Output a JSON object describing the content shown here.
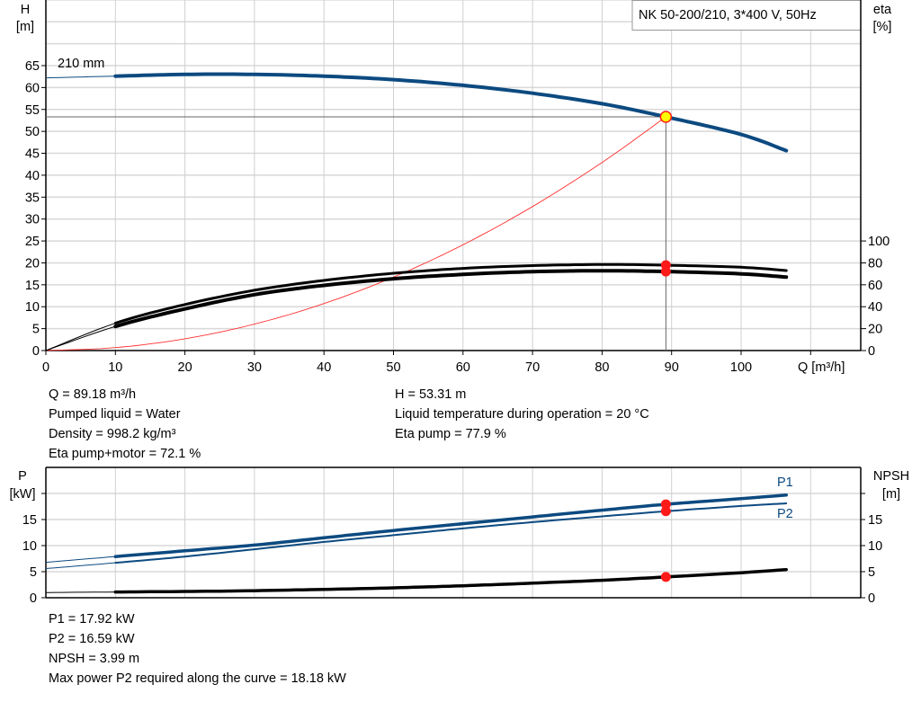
{
  "chart_data": [
    {
      "type": "line",
      "title": "NK 50-200/210, 3*400 V, 50Hz",
      "xlabel": "Q [m³/h]",
      "ylabel_left": [
        "H",
        "[m]"
      ],
      "ylabel_right": [
        "eta",
        "[%]"
      ],
      "xlim": [
        0,
        115
      ],
      "ylim_left": [
        0,
        80
      ],
      "ylim_right": [
        0,
        100
      ],
      "x_ticks": [
        0,
        10,
        20,
        30,
        40,
        50,
        60,
        70,
        80,
        90,
        100
      ],
      "y_ticks_left": [
        0,
        5,
        10,
        15,
        20,
        25,
        30,
        35,
        40,
        45,
        50,
        55,
        60,
        65
      ],
      "y_ticks_right": [
        0,
        20,
        40,
        60,
        80,
        100
      ],
      "grid": true,
      "curve_label": "210 mm",
      "series": [
        {
          "axis": "left",
          "color": "#0c4a80",
          "x": [
            0,
            10,
            20,
            30,
            40,
            50,
            60,
            70,
            80,
            89.18,
            100,
            106.5
          ],
          "y": [
            62.2,
            62.6,
            63.0,
            63.0,
            62.6,
            61.8,
            60.5,
            58.7,
            56.3,
            53.31,
            49.3,
            45.6
          ]
        },
        {
          "axis": "right",
          "color": "#000000",
          "x": [
            0,
            10,
            20,
            30,
            40,
            50,
            60,
            70,
            80,
            89.18,
            100,
            106.5
          ],
          "y": [
            0,
            25,
            42,
            55,
            64,
            70.5,
            75,
            77.5,
            78.5,
            77.9,
            76,
            73
          ]
        },
        {
          "axis": "right",
          "color": "#000000",
          "x": [
            0,
            10,
            20,
            30,
            40,
            50,
            60,
            70,
            80,
            89.18,
            100,
            106.5
          ],
          "y": [
            0,
            22,
            38,
            51,
            59.5,
            65.5,
            69.5,
            72,
            72.8,
            72.1,
            70,
            67
          ]
        },
        {
          "axis": "left",
          "color": "#ff3030",
          "x": [
            0,
            10,
            20,
            30,
            40,
            50,
            60,
            70,
            80,
            89.18
          ],
          "y": [
            0,
            0.67,
            2.68,
            6.03,
            10.72,
            16.76,
            24.13,
            32.85,
            42.9,
            53.31
          ]
        }
      ],
      "operating_point": {
        "q": 89.18,
        "h": 53.31,
        "eta_pump": 77.9,
        "eta_pump_motor": 72.1
      }
    },
    {
      "type": "line",
      "ylabel_left": [
        "P",
        "[kW]"
      ],
      "ylabel_right": [
        "NPSH",
        "[m]"
      ],
      "xlim": [
        0,
        115
      ],
      "ylim": [
        0,
        25
      ],
      "y_ticks": [
        0,
        5,
        10,
        15
      ],
      "grid": true,
      "series": [
        {
          "name": "P1",
          "color": "#0c4a80",
          "x": [
            0,
            10,
            20,
            30,
            40,
            50,
            60,
            70,
            80,
            89.18,
            100,
            106.5
          ],
          "y": [
            6.8,
            7.9,
            9.0,
            10.1,
            11.5,
            12.9,
            14.2,
            15.5,
            16.8,
            17.92,
            19.0,
            19.7
          ]
        },
        {
          "name": "P2",
          "color": "#0c4a80",
          "x": [
            0,
            10,
            20,
            30,
            40,
            50,
            60,
            70,
            80,
            89.18,
            100,
            106.5
          ],
          "y": [
            5.6,
            6.7,
            7.9,
            9.3,
            10.7,
            12.0,
            13.3,
            14.5,
            15.6,
            16.59,
            17.6,
            18.1
          ]
        },
        {
          "axis": "right",
          "color": "#000000",
          "x": [
            0,
            10,
            20,
            30,
            40,
            50,
            60,
            70,
            80,
            89.18,
            100,
            106.5
          ],
          "y": [
            1.0,
            1.1,
            1.2,
            1.35,
            1.6,
            1.9,
            2.3,
            2.8,
            3.35,
            3.99,
            4.8,
            5.4
          ]
        }
      ]
    }
  ],
  "info_top": {
    "left": [
      "Q = 89.18 m³/h",
      "Pumped liquid = Water",
      "Density = 998.2 kg/m³",
      "Eta pump+motor = 72.1 %"
    ],
    "right": [
      "H = 53.31 m",
      "Liquid temperature during operation = 20 °C",
      "Eta pump = 77.9 %"
    ]
  },
  "info_bottom": [
    "P1 = 17.92 kW",
    "P2 = 16.59 kW",
    "NPSH = 3.99 m",
    "Max power P2 required along the curve = 18.18 kW"
  ]
}
